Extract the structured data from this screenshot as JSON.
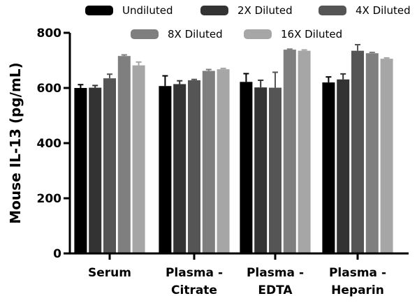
{
  "chart_data": {
    "type": "bar",
    "ylabel": "Mouse IL-13 (pg/mL)",
    "xlabel": "",
    "ylim": [
      0,
      800
    ],
    "yticks": [
      0,
      200,
      400,
      600,
      800
    ],
    "categories": [
      [
        "Serum"
      ],
      [
        "Plasma -",
        "Citrate"
      ],
      [
        "Plasma -",
        "EDTA"
      ],
      [
        "Plasma -",
        "Heparin"
      ]
    ],
    "legend_position": "top",
    "series": [
      {
        "name": "Undiluted",
        "color": "#000000",
        "values": [
          600,
          607,
          622,
          620
        ],
        "errors": [
          12,
          37,
          30,
          20
        ]
      },
      {
        "name": "2X Diluted",
        "color": "#333333",
        "values": [
          601,
          614,
          602,
          631
        ],
        "errors": [
          8,
          12,
          26,
          20
        ]
      },
      {
        "name": "4X Diluted",
        "color": "#555555",
        "values": [
          635,
          628,
          601,
          735
        ],
        "errors": [
          15,
          3,
          56,
          22
        ]
      },
      {
        "name": "8X Diluted",
        "color": "#7f7f7f",
        "values": [
          716,
          662,
          739,
          726
        ],
        "errors": [
          4,
          5,
          2,
          3
        ]
      },
      {
        "name": "16X Diluted",
        "color": "#a6a6a6",
        "values": [
          682,
          668,
          735,
          706
        ],
        "errors": [
          12,
          3,
          3,
          3
        ]
      }
    ]
  }
}
